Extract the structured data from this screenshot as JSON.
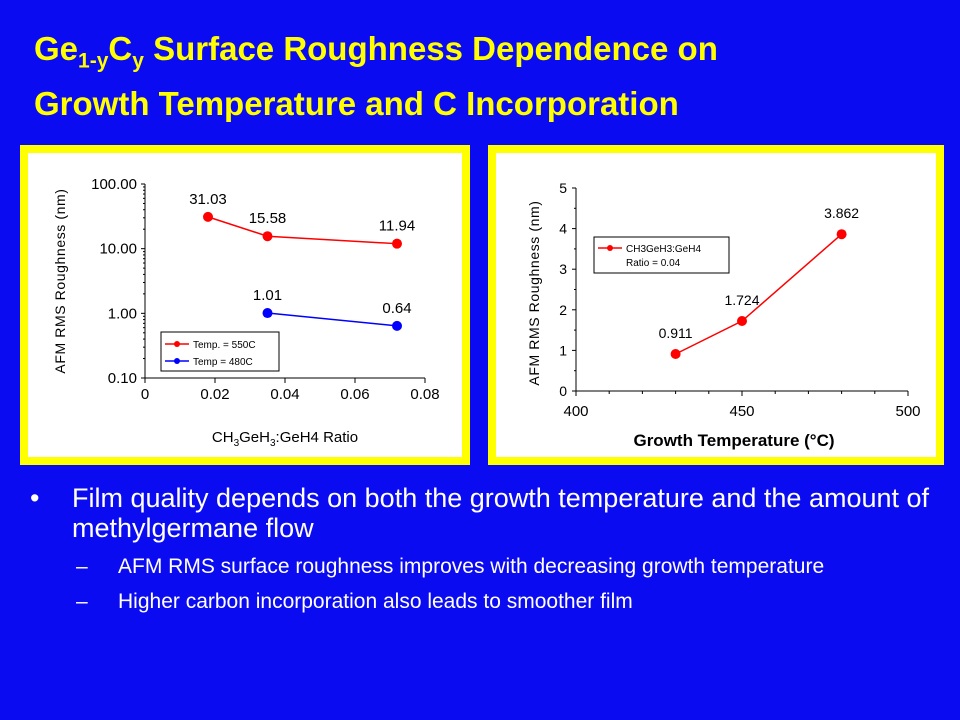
{
  "title": {
    "line1_part1": "Ge",
    "line1_sub1": "1-y",
    "line1_part2": "C",
    "line1_sub2": "y",
    "line1_part3": " Surface Roughness Dependence on",
    "line2": "Growth Temperature and C Incorporation"
  },
  "colors": {
    "background": "#0b0bf2",
    "title": "#ffff00",
    "frame": "#ffff00",
    "text": "#ffffff"
  },
  "chart_data": [
    {
      "type": "line",
      "ylabel": "AFM RMS Roughness (nm)",
      "xlabel_parts": [
        "CH",
        "3",
        "GeH",
        "3",
        ":GeH4 Ratio"
      ],
      "x_ticks": [
        "0",
        "0.02",
        "0.04",
        "0.06",
        "0.08"
      ],
      "y_ticks": [
        "0.10",
        "1.00",
        "10.00",
        "100.00"
      ],
      "xlim": [
        0,
        0.08
      ],
      "ylim": [
        0.1,
        100
      ],
      "y_scale": "log",
      "grid": false,
      "legend_placement": "bottom-center",
      "series": [
        {
          "name": "Temp. = 550C",
          "color": "#ff0000",
          "x": [
            0.018,
            0.035,
            0.072
          ],
          "y": [
            31.03,
            15.58,
            11.94
          ],
          "labels": [
            "31.03",
            "15.58",
            "11.94"
          ]
        },
        {
          "name": "Temp = 480C",
          "color": "#0000ff",
          "x": [
            0.035,
            0.072
          ],
          "y": [
            1.01,
            0.64
          ],
          "labels": [
            "1.01",
            "0.64"
          ]
        }
      ]
    },
    {
      "type": "line",
      "ylabel": "AFM RMS Roughness (nm)",
      "xlabel": "Growth Temperature (°C)",
      "x_ticks": [
        "400",
        "450",
        "500"
      ],
      "y_ticks": [
        "0",
        "1",
        "2",
        "3",
        "4",
        "5"
      ],
      "xlim": [
        400,
        500
      ],
      "ylim": [
        0,
        5
      ],
      "grid": false,
      "legend_placement": "top-left",
      "series": [
        {
          "name_line1": "CH3GeH3:GeH4",
          "name_line2": "Ratio = 0.04",
          "color": "#ff0000",
          "x": [
            430,
            450,
            480
          ],
          "y": [
            0.911,
            1.724,
            3.862
          ],
          "labels": [
            "0.911",
            "1.724",
            "3.862"
          ]
        }
      ]
    }
  ],
  "bullets": [
    {
      "text": "Film quality depends on both the growth temperature and the amount of methylgermane flow",
      "marker": "•"
    },
    {
      "text": "AFM RMS surface roughness improves with decreasing growth temperature",
      "marker": "–"
    },
    {
      "text": "Higher carbon incorporation also leads to smoother film",
      "marker": "–"
    }
  ]
}
